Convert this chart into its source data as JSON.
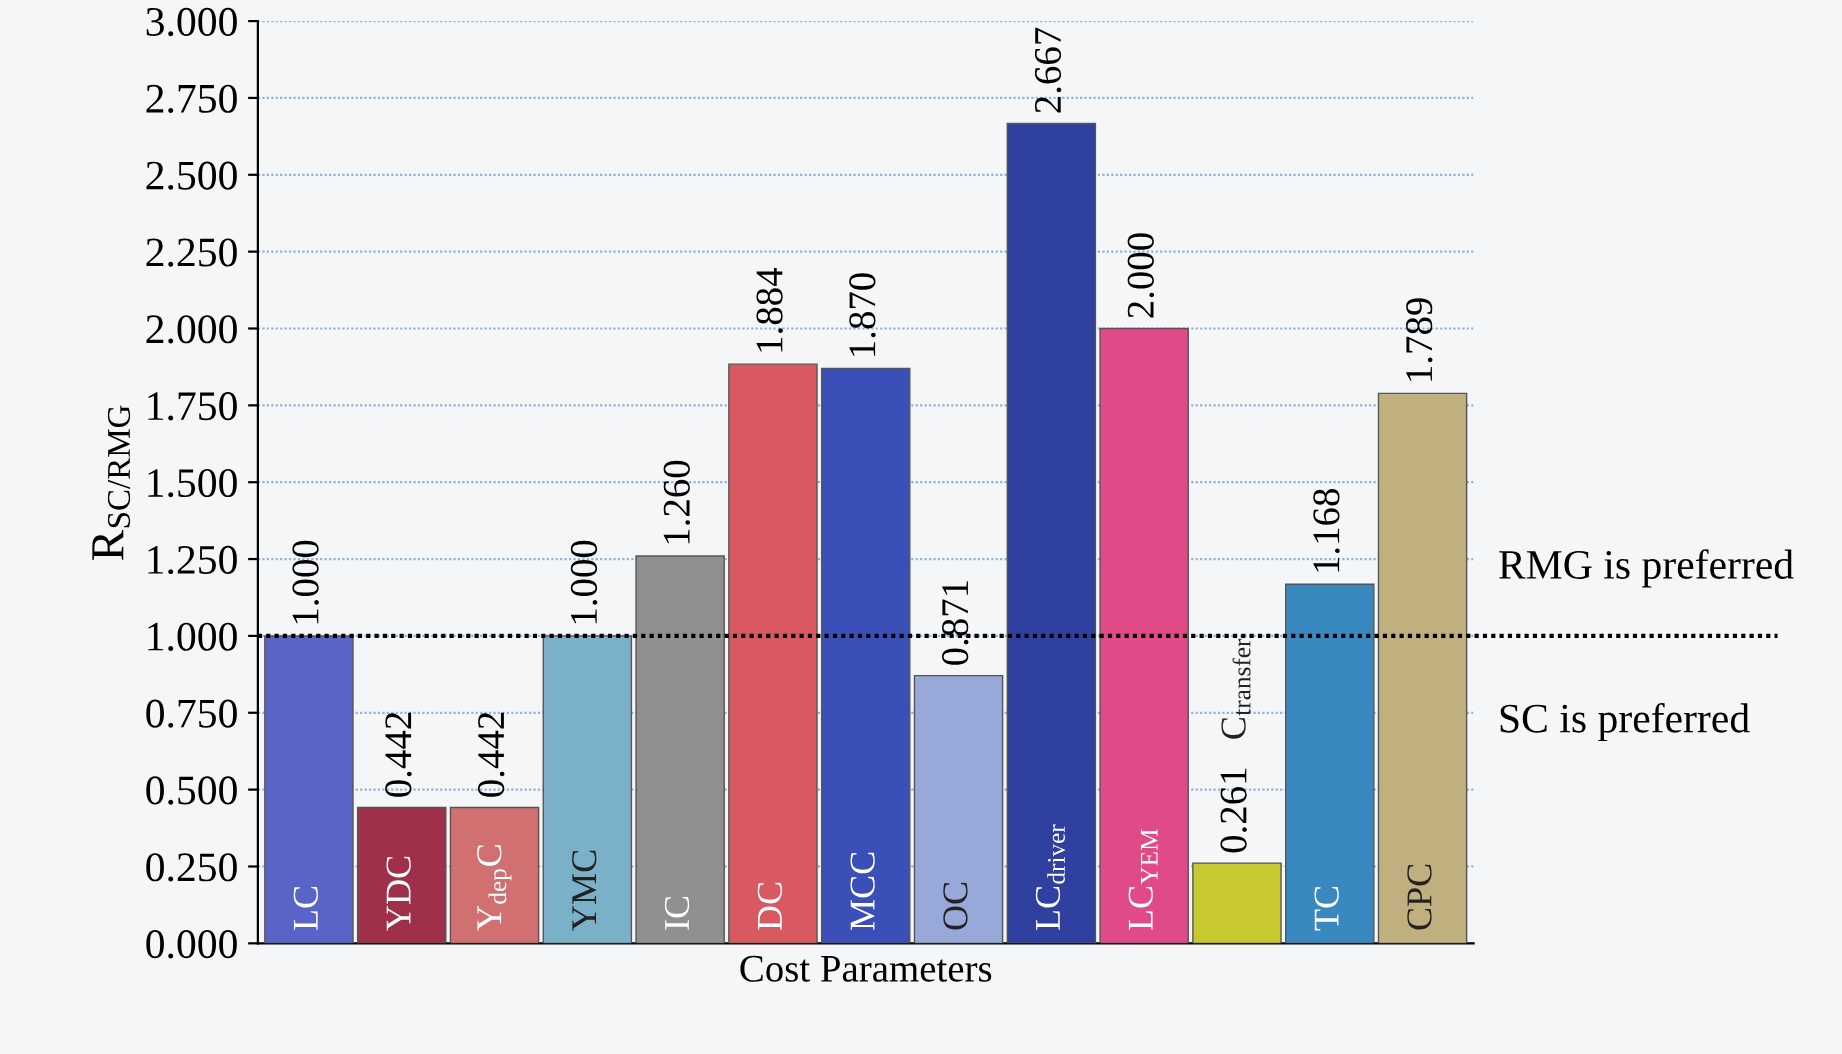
{
  "chart_data": {
    "type": "bar",
    "xlabel": "Cost Parameters",
    "ylabel": "R$_{SC/RMG}$",
    "categories": [
      "LC",
      "YDC",
      "Y$_{dep}$C",
      "YMC",
      "IC",
      "DC",
      "MCC",
      "OC",
      "LC$_{driver}$",
      "LC$_{YEM}$",
      "C$_{transfer}$",
      "TC",
      "CPC"
    ],
    "values": [
      1.0,
      0.442,
      0.442,
      1.0,
      1.26,
      1.884,
      1.87,
      0.871,
      2.667,
      2.0,
      0.261,
      1.168,
      1.789
    ],
    "value_labels": [
      "1.000",
      "0.442",
      "0.442",
      "1.000",
      "1.260",
      "1.884",
      "1.870",
      "0.871",
      "2.667",
      "2.000",
      "0.261",
      "1.168",
      "1.789"
    ],
    "colors": [
      "#5a64c8",
      "#a0304a",
      "#d07070",
      "#7ab0c8",
      "#909090",
      "#d85a60",
      "#3a50b8",
      "#98a8d8",
      "#3040a0",
      "#e04a88",
      "#c8c830",
      "#3a88c0",
      "#c0b080"
    ],
    "ylim": [
      0,
      3
    ],
    "yticks": [
      {
        "value": 0,
        "label": "0.000"
      },
      {
        "value": 0.25,
        "label": "0.250"
      },
      {
        "value": 0.5,
        "label": "0.500"
      },
      {
        "value": 0.75,
        "label": "0.750"
      },
      {
        "value": 1,
        "label": "1.000"
      },
      {
        "value": 1.25,
        "label": "1.250"
      },
      {
        "value": 1.5,
        "label": "1.500"
      },
      {
        "value": 1.75,
        "label": "1.750"
      },
      {
        "value": 2,
        "label": "2.000"
      },
      {
        "value": 2.25,
        "label": "2.250"
      },
      {
        "value": 2.5,
        "label": "2.500"
      },
      {
        "value": 2.75,
        "label": "2.750"
      },
      {
        "value": 3,
        "label": "3.000"
      }
    ],
    "grid": "y",
    "ref_lines": [
      {
        "axis": "y",
        "value": 1.0,
        "color": "#000000",
        "line_style": "dotted"
      }
    ],
    "annotations": [
      {
        "text": "RMG is preferred",
        "y": 1.0
      },
      {
        "text": "SC is preferred",
        "y": 1.0
      }
    ]
  }
}
